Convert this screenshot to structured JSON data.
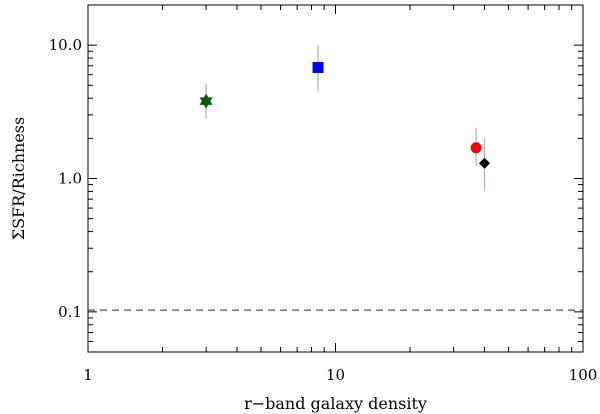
{
  "chart_data": {
    "type": "scatter",
    "title": "",
    "xlabel": "r−band galaxy density",
    "ylabel": "ΣSFR/Richness",
    "xscale": "log",
    "yscale": "log",
    "xlim": [
      1,
      100
    ],
    "ylim": [
      0.05,
      20
    ],
    "grid": false,
    "legend": "none",
    "x_tick_labels": [
      {
        "value": 1,
        "label": "1"
      },
      {
        "value": 10,
        "label": "10"
      },
      {
        "value": 100,
        "label": "100"
      }
    ],
    "y_tick_labels": [
      {
        "value": 0.1,
        "label": "0.1"
      },
      {
        "value": 1,
        "label": "1.0"
      },
      {
        "value": 10,
        "label": "10.0"
      }
    ],
    "reference_lines": [
      {
        "axis": "y",
        "value": 0.103,
        "style": "dashed",
        "color": "#555555"
      }
    ],
    "points": [
      {
        "x": 3.0,
        "y": 3.8,
        "y_err": [
          2.8,
          5.1
        ],
        "marker": "star",
        "color": "#0a5a0a"
      },
      {
        "x": 8.5,
        "y": 6.8,
        "y_err": [
          4.5,
          10.0
        ],
        "marker": "square",
        "color": "#0000ff"
      },
      {
        "x": 37,
        "y": 1.7,
        "y_err": [
          1.25,
          2.4
        ],
        "marker": "circle",
        "color": "#ff0000"
      },
      {
        "x": 40,
        "y": 1.3,
        "y_err": [
          0.8,
          2.0
        ],
        "marker": "diamond",
        "color": "#000000"
      }
    ]
  }
}
